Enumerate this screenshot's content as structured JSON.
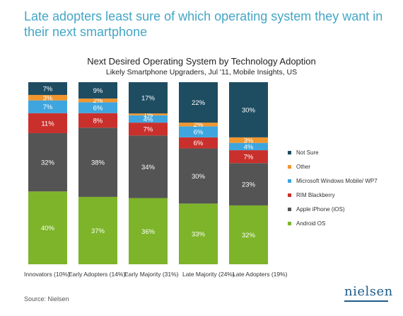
{
  "headline": "Late adopters least sure of which operating system they want in their next smartphone",
  "source": "Source: Nielsen",
  "logo": "nielsen",
  "chart_data": {
    "type": "bar",
    "stacked": true,
    "title": "Next Desired Operating System by Technology Adoption",
    "subtitle": "Likely Smartphone Upgraders, Jul '11, Mobile Insights, US",
    "categories": [
      "Innovators (10%)",
      "Early Adopters (14%)",
      "Early Majority (31%)",
      "Late Majority (24%)",
      "Late Adopters (19%)"
    ],
    "series": [
      {
        "name": "Android OS",
        "color": "#7db429",
        "values": [
          40,
          37,
          36,
          33,
          32
        ]
      },
      {
        "name": "Apple iPhone (iOS)",
        "color": "#545454",
        "values": [
          32,
          38,
          34,
          30,
          23
        ]
      },
      {
        "name": "RIM Blackberry",
        "color": "#c9302c",
        "values": [
          11,
          8,
          7,
          6,
          7
        ]
      },
      {
        "name": "Microsoft Windows Mobile/ WP7",
        "color": "#3ea5df",
        "values": [
          7,
          6,
          4,
          6,
          4
        ]
      },
      {
        "name": "Other",
        "color": "#f0962e",
        "values": [
          3,
          2,
          1,
          2,
          3
        ]
      },
      {
        "name": "Not Sure",
        "color": "#1e4d62",
        "values": [
          7,
          9,
          17,
          22,
          30
        ]
      }
    ],
    "data_labels": [
      [
        "40%",
        "37%",
        "36%",
        "33%",
        "32%"
      ],
      [
        "32%",
        "38%",
        "34%",
        "30%",
        "23%"
      ],
      [
        "11%",
        "8%",
        "7%",
        "6%",
        "7%"
      ],
      [
        "7%",
        "6%",
        "4%",
        "6%",
        "4%"
      ],
      [
        "3%",
        "2%",
        "1%",
        "2%",
        "3%"
      ],
      [
        "7%",
        "9%",
        "17%",
        "22%",
        "30%"
      ]
    ],
    "legend_order": [
      "Not Sure",
      "Other",
      "Microsoft Windows Mobile/ WP7",
      "RIM Blackberry",
      "Apple iPhone (iOS)",
      "Android OS"
    ],
    "legend_position": "right",
    "ylim": [
      0,
      100
    ],
    "grid": false
  }
}
